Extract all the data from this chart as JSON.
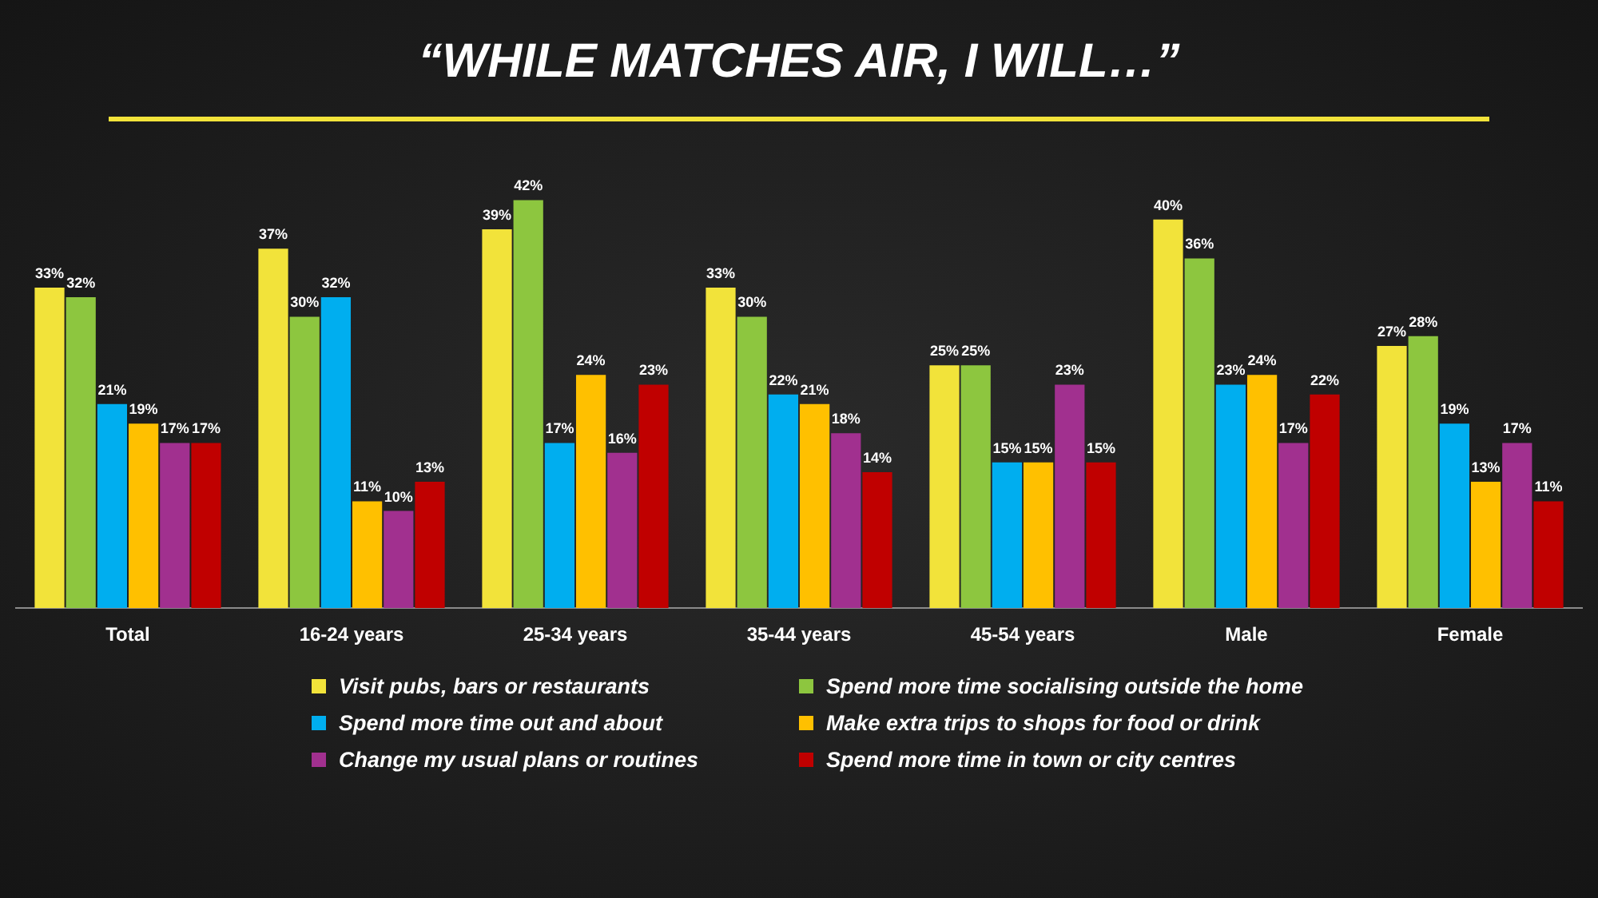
{
  "chart_data": {
    "type": "bar",
    "title": "“WHILE MATCHES AIR, I WILL…”",
    "categories": [
      "Total",
      "16-24 years",
      "25-34 years",
      "35-44 years",
      "45-54 years",
      "Male",
      "Female"
    ],
    "series": [
      {
        "name": "Visit pubs, bars or restaurants",
        "color": "#f2e33a",
        "values": [
          33,
          37,
          39,
          33,
          25,
          40,
          27
        ],
        "value_labels": [
          "33%",
          "37%",
          "39%",
          "33%",
          "25%",
          "40%",
          "27%"
        ]
      },
      {
        "name": "Spend more time socialising outside the home",
        "color": "#8dc63f",
        "values": [
          32,
          30,
          42,
          30,
          25,
          36,
          28
        ],
        "value_labels": [
          "32%",
          "30%",
          "42%",
          "30%",
          "25%",
          "36%",
          "28%"
        ]
      },
      {
        "name": "Spend more time out and about",
        "color": "#00aeef",
        "values": [
          21,
          32,
          17,
          22,
          15,
          23,
          19
        ],
        "value_labels": [
          "21%",
          "32%",
          "17%",
          "22%",
          "15%",
          "23%",
          "19%"
        ]
      },
      {
        "name": "Make extra trips to shops for food or drink",
        "color": "#ffc000",
        "values": [
          19,
          11,
          24,
          21,
          15,
          24,
          13
        ],
        "value_labels": [
          "19%",
          "11%",
          "24%",
          "21%",
          "15%",
          "24%",
          "13%"
        ]
      },
      {
        "name": "Change my usual plans or routines",
        "color": "#a1308f",
        "values": [
          17,
          10,
          16,
          18,
          23,
          17,
          17
        ],
        "value_labels": [
          "17%",
          "10%",
          "16%",
          "18%",
          "23%",
          "17%",
          "17%"
        ]
      },
      {
        "name": "Spend more time in town or city centres",
        "color": "#c00000",
        "values": [
          17,
          13,
          23,
          14,
          15,
          22,
          11
        ],
        "value_labels": [
          "17%",
          "13%",
          "23%",
          "14%",
          "15%",
          "22%",
          "11%"
        ]
      }
    ],
    "legend": "bottom",
    "grid": false
  }
}
